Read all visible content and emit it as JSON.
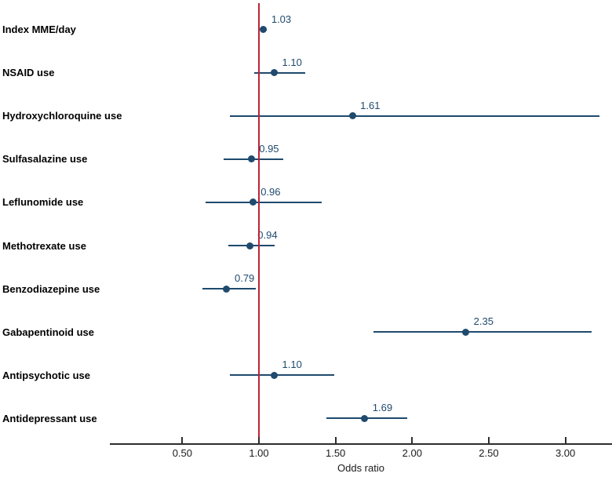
{
  "chart_data": {
    "type": "scatter",
    "variant": "forest-plot",
    "title": "",
    "xlabel": "Odds ratio",
    "legend": "none",
    "grid": false,
    "xlim": [
      0.03,
      3.3
    ],
    "reference_line": {
      "value": 1.0,
      "label": "1.00"
    },
    "x_ticks": [
      {
        "value": 0.5,
        "label": "0.50"
      },
      {
        "value": 1.0,
        "label": "1.00"
      },
      {
        "value": 1.5,
        "label": "1.50"
      },
      {
        "value": 2.0,
        "label": "2.00"
      },
      {
        "value": 2.5,
        "label": "2.50"
      },
      {
        "value": 3.0,
        "label": "3.00"
      }
    ],
    "rows": [
      {
        "label": "Index MME/day",
        "estimate": 1.03,
        "ci_low": 1.01,
        "ci_high": 1.05,
        "value_label": "1.03"
      },
      {
        "label": "NSAID use",
        "estimate": 1.1,
        "ci_low": 0.97,
        "ci_high": 1.3,
        "value_label": "1.10"
      },
      {
        "label": "Hydroxychloroquine use",
        "estimate": 1.61,
        "ci_low": 0.81,
        "ci_high": 3.22,
        "value_label": "1.61"
      },
      {
        "label": "Sulfasalazine use",
        "estimate": 0.95,
        "ci_low": 0.77,
        "ci_high": 1.16,
        "value_label": "0.95"
      },
      {
        "label": "Leflunomide use",
        "estimate": 0.96,
        "ci_low": 0.65,
        "ci_high": 1.41,
        "value_label": "0.96"
      },
      {
        "label": "Methotrexate use",
        "estimate": 0.94,
        "ci_low": 0.8,
        "ci_high": 1.1,
        "value_label": "0.94"
      },
      {
        "label": "Benzodiazepine use",
        "estimate": 0.79,
        "ci_low": 0.63,
        "ci_high": 0.98,
        "value_label": "0.79"
      },
      {
        "label": "Gabapentinoid use",
        "estimate": 2.35,
        "ci_low": 1.75,
        "ci_high": 3.17,
        "value_label": "2.35"
      },
      {
        "label": "Antipsychotic use",
        "estimate": 1.1,
        "ci_low": 0.81,
        "ci_high": 1.49,
        "value_label": "1.10"
      },
      {
        "label": "Antidepressant use",
        "estimate": 1.69,
        "ci_low": 1.44,
        "ci_high": 1.97,
        "value_label": "1.69"
      }
    ],
    "colors": {
      "marker": "#1f4a6d",
      "ci_line": "#1f4a6d",
      "value_text": "#1f4a6d",
      "reference": "#bb2437",
      "axis": "#2e2e2e",
      "category_text": "#000000"
    }
  }
}
